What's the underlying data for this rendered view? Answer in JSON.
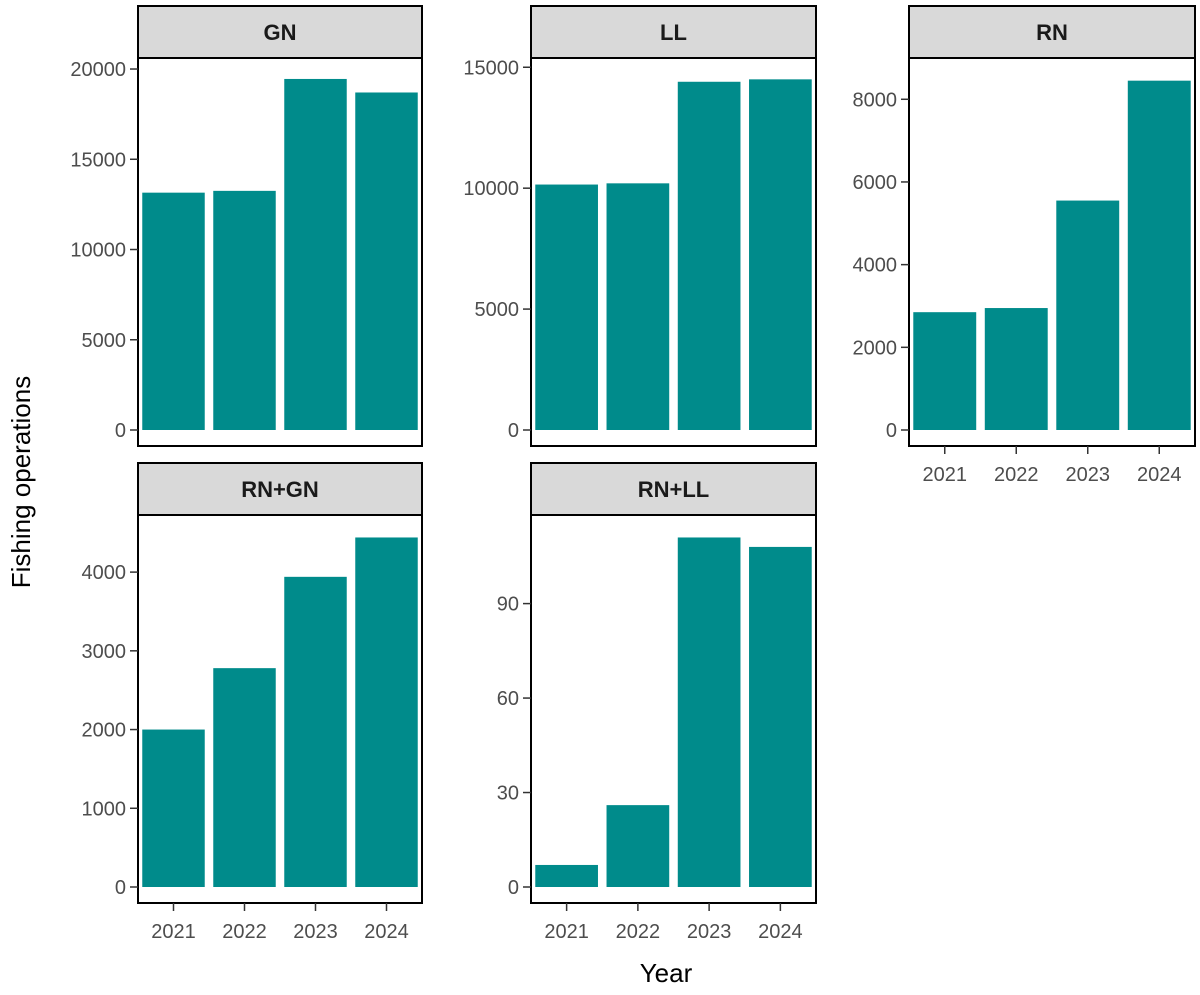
{
  "chart_data": {
    "type": "bar",
    "layout": "facet-wrap",
    "xlabel": "Year",
    "ylabel": "Fishing operations",
    "categories": [
      "2021",
      "2022",
      "2023",
      "2024"
    ],
    "bar_color": "#008B8B",
    "strip_color": "#D9D9D9",
    "facets": [
      {
        "name": "GN",
        "values": [
          13150,
          13250,
          19450,
          18700
        ],
        "ylim": [
          0,
          20500
        ],
        "yticks": [
          0,
          5000,
          10000,
          15000,
          20000
        ],
        "yticklabels": [
          "0",
          "5000",
          "10000",
          "15000",
          "20000"
        ]
      },
      {
        "name": "LL",
        "values": [
          10150,
          10200,
          14400,
          14500
        ],
        "ylim": [
          0,
          15300
        ],
        "yticks": [
          0,
          5000,
          10000,
          15000
        ],
        "yticklabels": [
          "0",
          "5000",
          "10000",
          "15000"
        ]
      },
      {
        "name": "RN",
        "values": [
          2850,
          2950,
          5550,
          8450
        ],
        "ylim": [
          0,
          8950
        ],
        "yticks": [
          0,
          2000,
          4000,
          6000,
          8000
        ],
        "yticklabels": [
          "0",
          "2000",
          "4000",
          "6000",
          "8000"
        ]
      },
      {
        "name": "RN+GN",
        "values": [
          2000,
          2780,
          3940,
          4440
        ],
        "ylim": [
          0,
          4700
        ],
        "yticks": [
          0,
          1000,
          2000,
          3000,
          4000
        ],
        "yticklabels": [
          "0",
          "1000",
          "2000",
          "3000",
          "4000"
        ]
      },
      {
        "name": "RN+LL",
        "values": [
          7,
          26,
          111,
          108
        ],
        "ylim": [
          0,
          117.5
        ],
        "yticks": [
          0,
          30,
          60,
          90
        ],
        "yticklabels": [
          "0",
          "30",
          "60",
          "90"
        ]
      }
    ]
  }
}
